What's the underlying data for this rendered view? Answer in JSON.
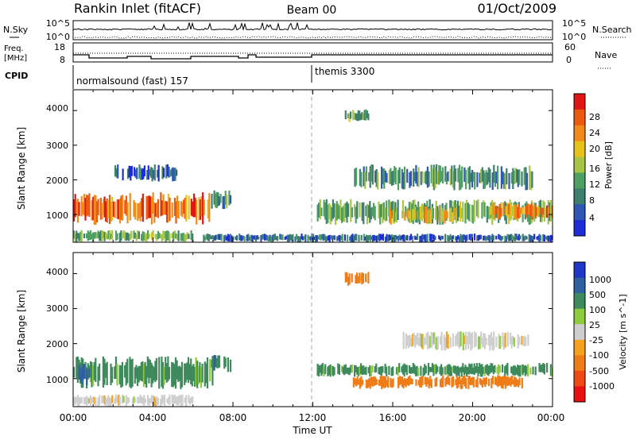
{
  "header": {
    "station": "Rankin Inlet (fitACF)",
    "beam": "Beam 00",
    "date": "01/Oct/2009"
  },
  "nsky_panel": {
    "left_label": "N.Sky",
    "left_ticks": [
      "10^5",
      "10^0"
    ],
    "right_label": "N.Search",
    "right_ticks": [
      "10^5",
      "10^0"
    ]
  },
  "freq_panel": {
    "left_label_1": "Freq.",
    "left_label_2": "[MHz]",
    "left_ticks": [
      "18",
      "8"
    ],
    "right_label": "Nave",
    "right_ticks": [
      "60",
      "0"
    ]
  },
  "cpid_panel": {
    "label": "CPID",
    "programs": [
      {
        "name": "normalsound (fast) 157",
        "start_hour": 0
      },
      {
        "name": "themis 3300",
        "start_hour": 12.0
      }
    ]
  },
  "colors": {
    "power_scale": [
      "#1f2bd6",
      "#2e58b3",
      "#3f7f6e",
      "#4fa062",
      "#a8c645",
      "#e6c21a",
      "#f08a1a",
      "#ec5a10",
      "#e11414"
    ],
    "velocity_scale": [
      "#e81010",
      "#ef4a14",
      "#f07c18",
      "#f5a21e",
      "#cfcfcf",
      "#8ecb3e",
      "#3f8a5c",
      "#3060a0",
      "#2036c6"
    ]
  },
  "chart_data": [
    {
      "type": "heatmap",
      "title": "Power",
      "ylabel": "Slant Range [km]",
      "yticks": [
        "1000",
        "2000",
        "3000",
        "4000"
      ],
      "ylim": [
        200,
        4600
      ],
      "xlim": [
        0,
        24
      ],
      "colorbar": {
        "label": "Power [dB]",
        "ticks": [
          "4",
          "8",
          "12",
          "16",
          "20",
          "24",
          "28"
        ],
        "range": [
          0,
          30
        ]
      },
      "regions": [
        {
          "t_start": 0.0,
          "t_end": 6.9,
          "r_min": 700,
          "r_max": 1650,
          "level": 24
        },
        {
          "t_start": 0.0,
          "t_end": 6.0,
          "r_min": 200,
          "r_max": 550,
          "level": 12
        },
        {
          "t_start": 6.9,
          "t_end": 7.9,
          "r_min": 1150,
          "r_max": 1700,
          "level": 10
        },
        {
          "t_start": 2.0,
          "t_end": 5.2,
          "r_min": 1950,
          "r_max": 2450,
          "level": 6
        },
        {
          "t_start": 12.2,
          "t_end": 24.0,
          "r_min": 700,
          "r_max": 1450,
          "level": 12
        },
        {
          "t_start": 15.8,
          "t_end": 19.2,
          "r_min": 700,
          "r_max": 1250,
          "level": 18
        },
        {
          "t_start": 20.8,
          "t_end": 24.0,
          "r_min": 850,
          "r_max": 1350,
          "level": 22
        },
        {
          "t_start": 14.0,
          "t_end": 23.0,
          "r_min": 1700,
          "r_max": 2450,
          "level": 10
        },
        {
          "t_start": 13.6,
          "t_end": 14.8,
          "r_min": 3650,
          "r_max": 4050,
          "level": 12
        },
        {
          "t_start": 6.5,
          "t_end": 24.0,
          "r_min": 200,
          "r_max": 450,
          "level": 6
        }
      ]
    },
    {
      "type": "heatmap",
      "title": "Velocity",
      "ylabel": "Slant Range [km]",
      "xlabel": "Time UT",
      "xticks": [
        "00:00",
        "04:00",
        "08:00",
        "12:00",
        "16:00",
        "20:00",
        "00:00"
      ],
      "yticks": [
        "1000",
        "2000",
        "3000",
        "4000"
      ],
      "ylim": [
        200,
        4600
      ],
      "xlim": [
        0,
        24
      ],
      "colorbar": {
        "label": "Velocity [m s^-1]",
        "ticks": [
          "1000",
          "500",
          "100",
          "25",
          "-25",
          "-100",
          "-500",
          "-1000"
        ],
        "range": [
          -1000,
          1000
        ]
      },
      "regions": [
        {
          "t_start": 0.0,
          "t_end": 7.0,
          "r_min": 700,
          "r_max": 1650,
          "level": 150
        },
        {
          "t_start": 0.0,
          "t_end": 0.9,
          "r_min": 800,
          "r_max": 1500,
          "level": 700
        },
        {
          "t_start": 0.0,
          "t_end": 6.0,
          "r_min": 200,
          "r_max": 550,
          "level": 0
        },
        {
          "t_start": 6.9,
          "t_end": 7.9,
          "r_min": 1150,
          "r_max": 1700,
          "level": 400
        },
        {
          "t_start": 12.2,
          "t_end": 24.0,
          "r_min": 1050,
          "r_max": 1450,
          "level": 150
        },
        {
          "t_start": 14.0,
          "t_end": 22.5,
          "r_min": 700,
          "r_max": 1100,
          "level": -200
        },
        {
          "t_start": 16.5,
          "t_end": 22.8,
          "r_min": 1800,
          "r_max": 2350,
          "level": 0
        },
        {
          "t_start": 13.6,
          "t_end": 14.8,
          "r_min": 3650,
          "r_max": 4050,
          "level": -150
        }
      ]
    }
  ],
  "xaxis_label": "Time UT"
}
